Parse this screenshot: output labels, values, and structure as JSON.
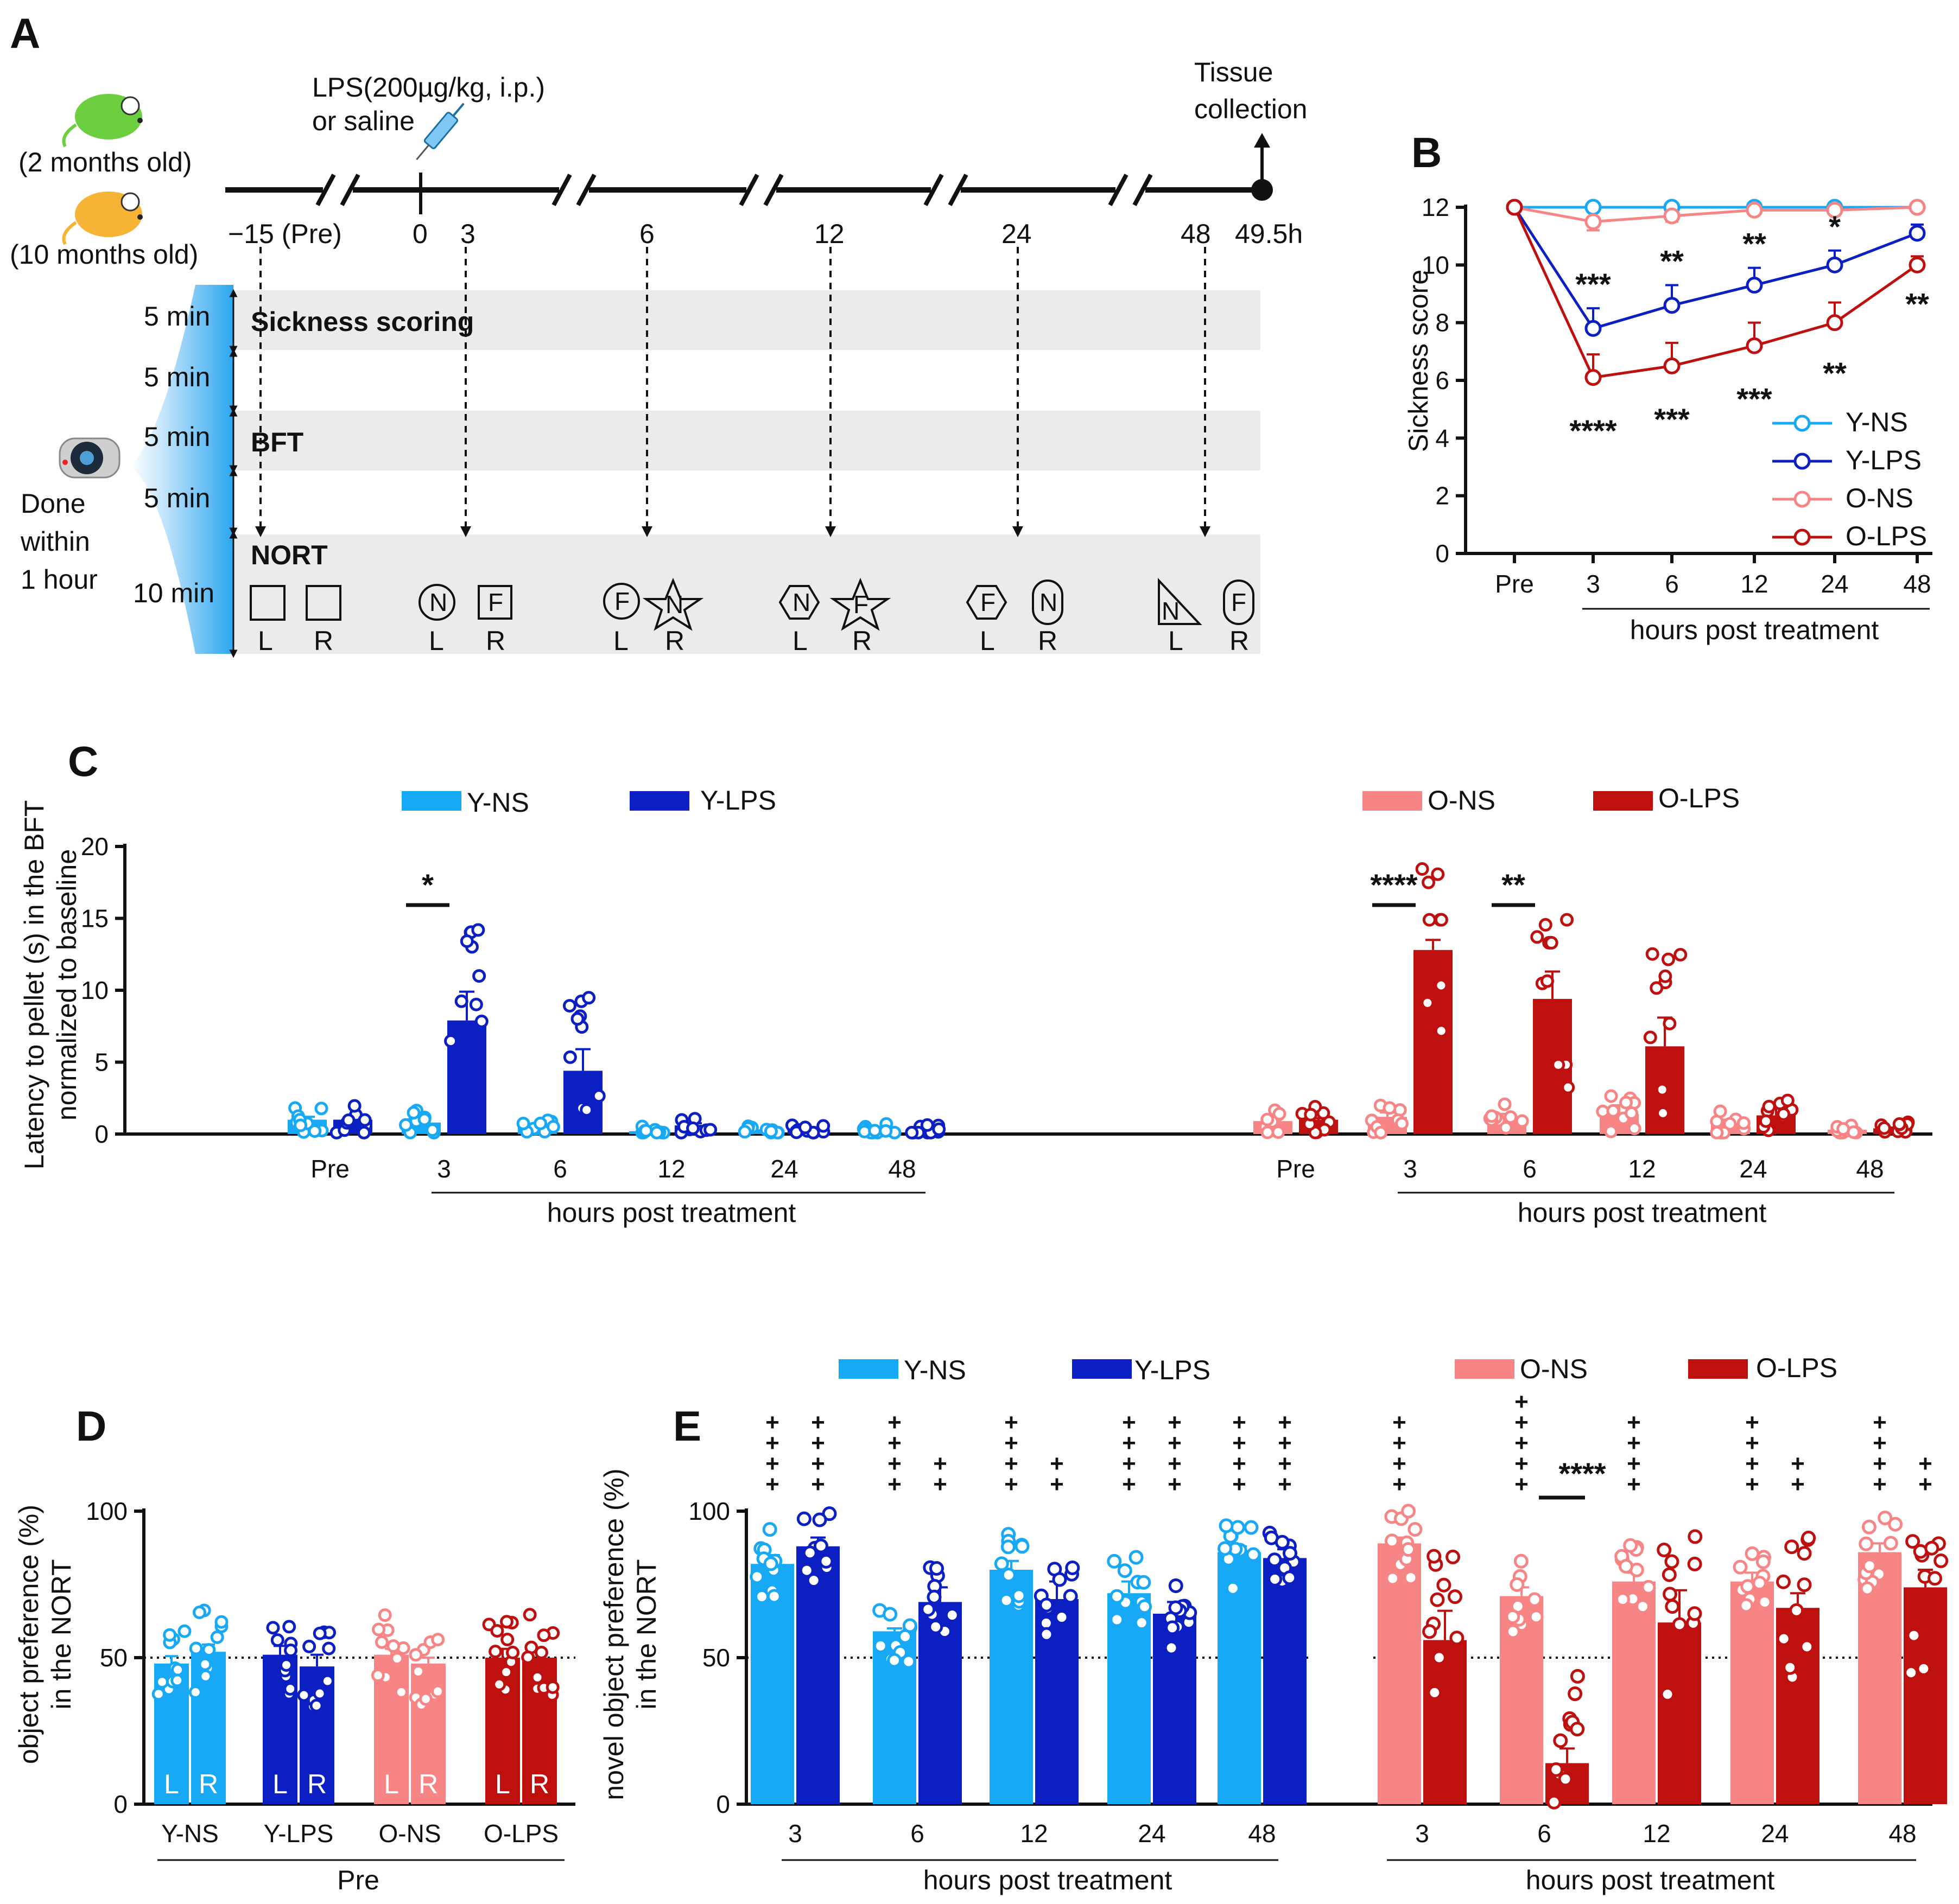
{
  "colors": {
    "yns": "#17a9f5",
    "ylps": "#0c1fc2",
    "ons": "#f88585",
    "olps": "#bf1010",
    "ink": "#111111",
    "band": "#ebebeb"
  },
  "panelA": {
    "label": "A",
    "young": "(2 months old)",
    "old": "(10 months old)",
    "lps_line1": "LPS(200µg/kg, i.p.)",
    "lps_line2": "or saline",
    "tissue_line1": "Tissue",
    "tissue_line2": "collection",
    "timepoints": [
      "−15 (Pre)",
      "0",
      "3",
      "6",
      "12",
      "24",
      "48",
      "49.5h"
    ],
    "done": [
      "Done",
      "within",
      "1 hour"
    ],
    "durations": [
      "5 min",
      "5 min",
      "5 min",
      "5 min",
      "10 min"
    ],
    "tasks": [
      "Sickness scoring",
      "BFT",
      "NORT"
    ],
    "sides": [
      "L",
      "R"
    ],
    "objects": [
      {
        "left": "",
        "right": "",
        "shapes": [
          "square",
          "square"
        ]
      },
      {
        "left": "N",
        "right": "F",
        "shapes": [
          "circle",
          "square"
        ]
      },
      {
        "left": "F",
        "right": "N",
        "shapes": [
          "circle",
          "star"
        ]
      },
      {
        "left": "N",
        "right": "F",
        "shapes": [
          "hexagon",
          "star"
        ]
      },
      {
        "left": "F",
        "right": "N",
        "shapes": [
          "hexagon",
          "pill"
        ]
      },
      {
        "left": "N",
        "right": "F",
        "shapes": [
          "triangle",
          "pill"
        ]
      }
    ]
  },
  "panelB": {
    "label": "B",
    "ylabel": "Sickness score",
    "xlabel": "hours post treatment",
    "legend": [
      "Y-NS",
      "Y-LPS",
      "O-NS",
      "O-LPS"
    ]
  },
  "panelC": {
    "label": "C",
    "ylabel_line1": "Latency to pellet (s) in the BFT",
    "ylabel_line2": "normalized to baseline",
    "xlabel": "hours post treatment",
    "legend": [
      "Y-NS",
      "Y-LPS",
      "O-NS",
      "O-LPS"
    ]
  },
  "panelD": {
    "label": "D",
    "ylabel_line1": "object preference (%)",
    "ylabel_line2": "in the NORT",
    "xlabel": "Pre"
  },
  "panelE": {
    "label": "E",
    "ylabel_line1": "novel object preference (%)",
    "ylabel_line2": "in the NORT",
    "xlabel": "hours post treatment",
    "legend": [
      "Y-NS",
      "Y-LPS",
      "O-NS",
      "O-LPS"
    ]
  },
  "chart_data": [
    {
      "panel": "B",
      "type": "line",
      "title": "",
      "xlabel": "hours post treatment",
      "ylabel": "Sickness score",
      "categories": [
        "Pre",
        "3",
        "6",
        "12",
        "24",
        "48"
      ],
      "ylim": [
        0,
        12
      ],
      "yticks": [
        0,
        2,
        4,
        6,
        8,
        10,
        12
      ],
      "series": [
        {
          "name": "Y-NS",
          "values": [
            12,
            12,
            12,
            12,
            12,
            12
          ],
          "errors": [
            0,
            0,
            0,
            0,
            0,
            0
          ]
        },
        {
          "name": "Y-LPS",
          "values": [
            12,
            7.8,
            8.6,
            9.3,
            10.0,
            11.1
          ],
          "errors": [
            0,
            0.7,
            0.7,
            0.6,
            0.5,
            0.3
          ]
        },
        {
          "name": "O-NS",
          "values": [
            12,
            11.5,
            11.7,
            11.9,
            11.9,
            12
          ],
          "errors": [
            0,
            0.3,
            0.2,
            0.1,
            0.1,
            0
          ]
        },
        {
          "name": "O-LPS",
          "values": [
            12,
            6.1,
            6.5,
            7.2,
            8.0,
            10.0
          ],
          "errors": [
            0,
            0.8,
            0.8,
            0.8,
            0.7,
            0.3
          ]
        }
      ],
      "annotations": [
        {
          "series": "Y-LPS",
          "x": "3",
          "text": "***"
        },
        {
          "series": "Y-LPS",
          "x": "6",
          "text": "**"
        },
        {
          "series": "Y-LPS",
          "x": "12",
          "text": "**"
        },
        {
          "series": "Y-LPS",
          "x": "24",
          "text": "*"
        },
        {
          "series": "O-LPS",
          "x": "3",
          "text": "****"
        },
        {
          "series": "O-LPS",
          "x": "6",
          "text": "***"
        },
        {
          "series": "O-LPS",
          "x": "12",
          "text": "***"
        },
        {
          "series": "O-LPS",
          "x": "24",
          "text": "**"
        },
        {
          "series": "O-LPS",
          "x": "48",
          "text": "**"
        }
      ]
    },
    {
      "panel": "C",
      "type": "bar",
      "title": "",
      "xlabel": "hours post treatment",
      "ylabel": "Latency to pellet (s) in the BFT normalized to baseline",
      "categories": [
        "Pre",
        "3",
        "6",
        "12",
        "24",
        "48"
      ],
      "ylim": [
        0,
        20
      ],
      "yticks": [
        0,
        5,
        10,
        15,
        20
      ],
      "groups": [
        {
          "name": "Young",
          "series": [
            {
              "name": "Y-NS",
              "values": [
                1.0,
                0.8,
                0.5,
                0.2,
                0.2,
                0.3
              ],
              "errors": [
                0.2,
                0.15,
                0.1,
                0.05,
                0.05,
                0.05
              ]
            },
            {
              "name": "Y-LPS",
              "values": [
                1.0,
                7.9,
                4.4,
                0.6,
                0.3,
                0.3
              ],
              "errors": [
                0.2,
                2.0,
                1.5,
                0.15,
                0.05,
                0.05
              ]
            }
          ],
          "significance": [
            {
              "x": "3",
              "text": "*"
            }
          ]
        },
        {
          "name": "Old",
          "series": [
            {
              "name": "O-NS",
              "values": [
                0.9,
                1.2,
                1.1,
                1.4,
                0.8,
                0.3
              ],
              "errors": [
                0.2,
                0.3,
                0.3,
                0.6,
                0.2,
                0.05
              ]
            },
            {
              "name": "O-LPS",
              "values": [
                1.0,
                12.8,
                9.4,
                6.1,
                1.3,
                0.4
              ],
              "errors": [
                0.1,
                0.7,
                1.9,
                2.0,
                0.5,
                0.05
              ]
            }
          ],
          "significance": [
            {
              "x": "3",
              "text": "****"
            },
            {
              "x": "6",
              "text": "**"
            }
          ]
        }
      ]
    },
    {
      "panel": "D",
      "type": "bar",
      "title": "",
      "xlabel": "Pre",
      "ylabel": "object preference (%) in the NORT",
      "categories": [
        "Y-NS",
        "Y-LPS",
        "O-NS",
        "O-LPS"
      ],
      "ylim": [
        0,
        100
      ],
      "yticks": [
        0,
        50,
        100
      ],
      "reference_line": 50,
      "series": [
        {
          "name": "L",
          "values": [
            48,
            51,
            51,
            50
          ],
          "errors": [
            2.5,
            3,
            2,
            3
          ]
        },
        {
          "name": "R",
          "values": [
            52,
            47,
            48,
            50
          ],
          "errors": [
            2.5,
            4,
            2,
            3
          ]
        }
      ]
    },
    {
      "panel": "E",
      "type": "bar",
      "title": "",
      "xlabel": "hours post treatment",
      "ylabel": "novel object preference (%) in the NORT",
      "categories": [
        "3",
        "6",
        "12",
        "24",
        "48"
      ],
      "ylim": [
        0,
        100
      ],
      "yticks": [
        0,
        50,
        100
      ],
      "reference_line": 50,
      "groups": [
        {
          "name": "Young",
          "series": [
            {
              "name": "Y-NS",
              "values": [
                82,
                59,
                80,
                72,
                86
              ],
              "errors": [
                3,
                1,
                3,
                4,
                2
              ],
              "plus": [
                "++++",
                "++++",
                "++++",
                "++++",
                "++++"
              ]
            },
            {
              "name": "Y-LPS",
              "values": [
                88,
                69,
                70,
                65,
                84
              ],
              "errors": [
                3,
                5,
                6,
                4,
                3
              ],
              "plus": [
                "++++",
                "++",
                "++",
                "++++",
                "++++"
              ]
            }
          ]
        },
        {
          "name": "Old",
          "series": [
            {
              "name": "O-NS",
              "values": [
                89,
                71,
                76,
                76,
                86
              ],
              "errors": [
                2,
                3,
                3,
                3,
                3
              ],
              "plus": [
                "++++",
                "+++++",
                "++++",
                "++++",
                "++++"
              ]
            },
            {
              "name": "O-LPS",
              "values": [
                56,
                14,
                62,
                67,
                74
              ],
              "errors": [
                10,
                5,
                11,
                5,
                6
              ],
              "plus": [
                "",
                "",
                "",
                "++",
                "++"
              ]
            }
          ],
          "significance": [
            {
              "x": "6",
              "text": "****"
            }
          ]
        }
      ]
    }
  ]
}
